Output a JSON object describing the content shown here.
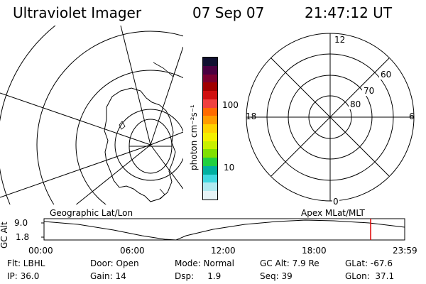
{
  "header": {
    "instrument": "Ultraviolet Imager",
    "date": "07 Sep 07",
    "time": "21:47:12 UT"
  },
  "colorbar": {
    "unit_label": "photon cm⁻²s⁻¹",
    "ticks": [
      "100",
      "10"
    ],
    "colors": [
      "#101030",
      "#4a0040",
      "#7a0030",
      "#a00000",
      "#d01010",
      "#f04040",
      "#ff6a00",
      "#ff9c00",
      "#ffd200",
      "#f4f000",
      "#c8f000",
      "#80e000",
      "#20d040",
      "#00b0a0",
      "#40d8e0",
      "#b0eaf0",
      "#e6f3f6"
    ]
  },
  "polar_plot": {
    "mlt_labels": {
      "top": "12",
      "bottom": "0",
      "left": "18",
      "right": "6"
    },
    "lat_labels": [
      "60",
      "70",
      "80"
    ]
  },
  "coord_labels": {
    "geographic": "Geographic Lat/Lon",
    "apex": "Apex MLat/MLT"
  },
  "altitude_plot": {
    "ylabel": "GC Alt",
    "yticks": [
      "9.0",
      "1.8"
    ],
    "xticks": [
      "00:00",
      "06:00",
      "12:00",
      "18:00",
      "23:59"
    ],
    "marker_color": "#e00000"
  },
  "info": {
    "filter": "Flt: LBHL",
    "door": "Door: Open",
    "mode": "Mode: Normal",
    "gc_alt": "GC Alt: 7.9 Re",
    "glat": "GLat: -67.6",
    "ip": "IP: 36.0",
    "gain": "Gain: 14",
    "dsp": "Dsp:     1.9",
    "seq": "Seq: 39",
    "glon": "GLon:  37.1"
  }
}
